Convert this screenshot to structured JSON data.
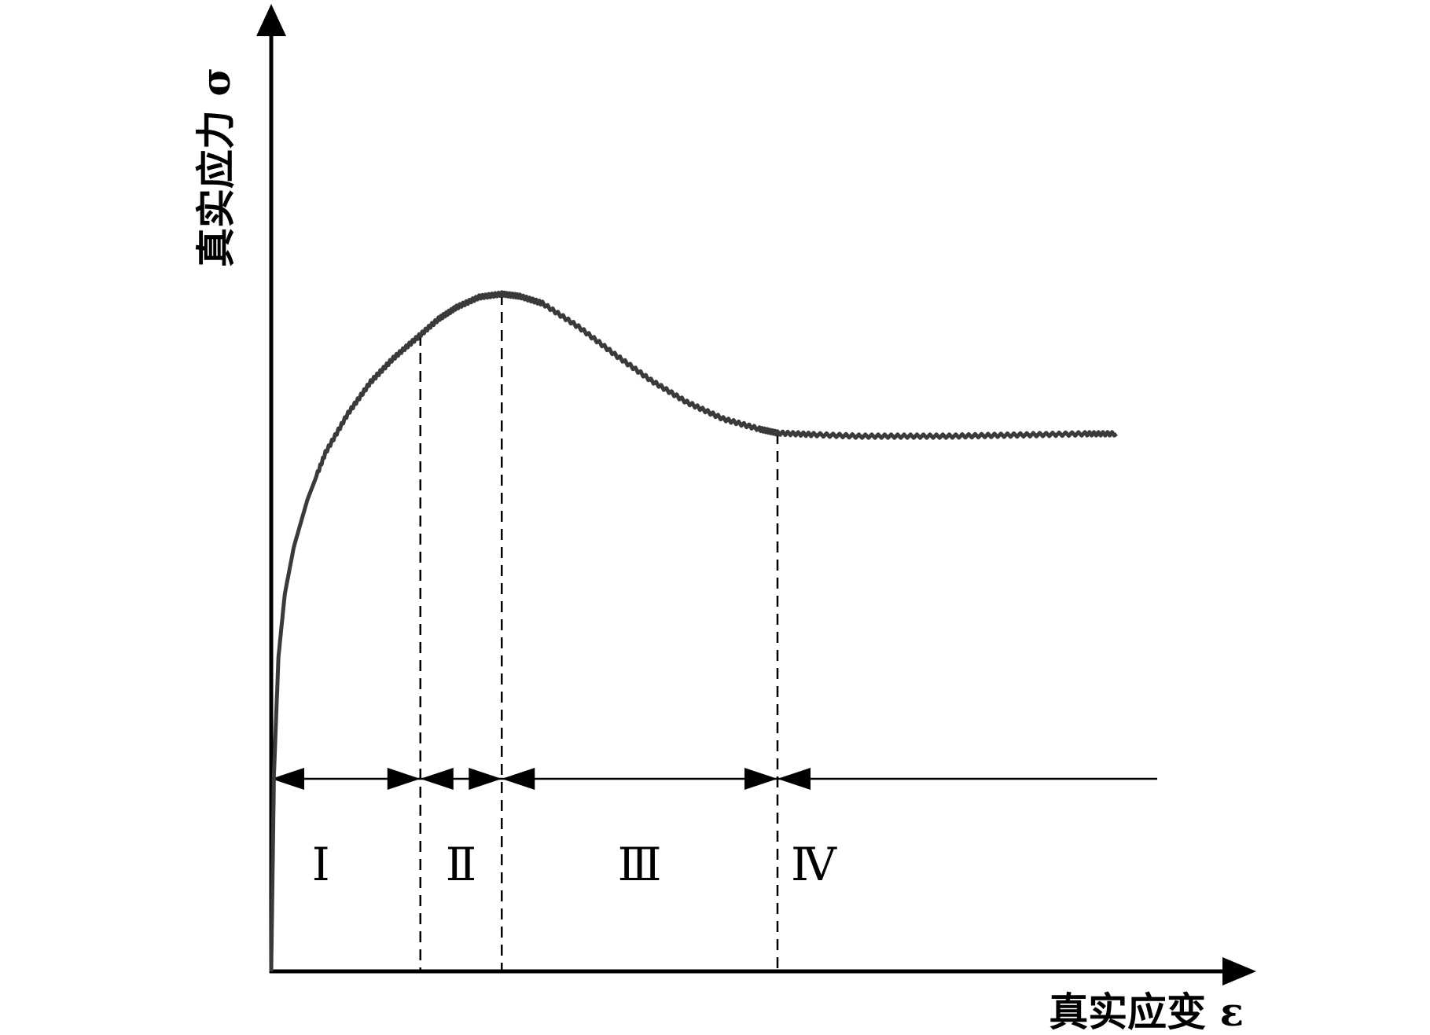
{
  "chart_data": {
    "type": "line",
    "xlabel": "真实应变 ε",
    "ylabel": "真实应力 σ",
    "grid": false,
    "legend": "none",
    "colors": {
      "curve": "#3a3a3a",
      "axis": "#000000",
      "boundary": "#000000"
    },
    "x_range": [
      0,
      1.0
    ],
    "y_range": [
      0,
      1.0
    ],
    "series": [
      {
        "x": [
          0.0,
          0.003,
          0.008,
          0.015,
          0.025,
          0.04,
          0.06,
          0.085,
          0.11,
          0.135,
          0.16,
          0.185,
          0.205,
          0.23,
          0.255,
          0.275,
          0.3,
          0.34,
          0.38,
          0.42,
          0.46,
          0.5,
          0.54,
          0.56,
          0.6,
          0.65,
          0.7,
          0.75,
          0.8,
          0.85,
          0.9,
          0.935
        ],
        "y": [
          0.0,
          0.25,
          0.4,
          0.48,
          0.54,
          0.6,
          0.66,
          0.71,
          0.75,
          0.78,
          0.805,
          0.83,
          0.845,
          0.858,
          0.862,
          0.859,
          0.85,
          0.82,
          0.785,
          0.752,
          0.724,
          0.703,
          0.69,
          0.685,
          0.683,
          0.681,
          0.681,
          0.681,
          0.682,
          0.683,
          0.684,
          0.684
        ]
      }
    ],
    "boundaries": [
      0.165,
      0.255,
      0.56
    ],
    "regions": [
      "Ⅰ",
      "Ⅱ",
      "Ⅲ",
      "Ⅳ"
    ],
    "arrow_line": {
      "y": 0.245,
      "x_end": 0.98
    }
  }
}
